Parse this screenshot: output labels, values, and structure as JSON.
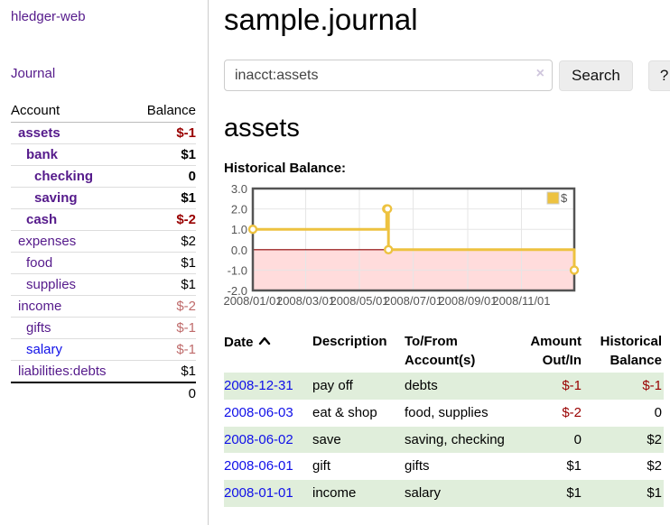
{
  "app_title": "hledger-web",
  "colors": {
    "link_purple": "#551a8b",
    "link_blue": "#0f0fe8",
    "negative_strong": "#990000",
    "negative_weak": "#bf6b6b",
    "row_stripe_green": "#e0eedb"
  },
  "sidebar": {
    "journal_link": "Journal",
    "accounts_table": {
      "account_header": "Account",
      "balance_header": "Balance",
      "rows": [
        {
          "name": "assets",
          "balance": "$-1",
          "depth": 1,
          "bold": true,
          "balance_style": "neg-strong"
        },
        {
          "name": "bank",
          "balance": "$1",
          "depth": 2,
          "bold": true,
          "balance_style": "pos"
        },
        {
          "name": "checking",
          "balance": "0",
          "depth": 3,
          "bold": true,
          "balance_style": "pos"
        },
        {
          "name": "saving",
          "balance": "$1",
          "depth": 3,
          "bold": true,
          "balance_style": "pos"
        },
        {
          "name": "cash",
          "balance": "$-2",
          "depth": 2,
          "bold": true,
          "balance_style": "neg-strong"
        },
        {
          "name": "expenses",
          "balance": "$2",
          "depth": 1,
          "bold": false,
          "balance_style": "pos"
        },
        {
          "name": "food",
          "balance": "$1",
          "depth": 2,
          "bold": false,
          "balance_style": "pos"
        },
        {
          "name": "supplies",
          "balance": "$1",
          "depth": 2,
          "bold": false,
          "balance_style": "pos"
        },
        {
          "name": "income",
          "balance": "$-2",
          "depth": 1,
          "bold": false,
          "balance_style": "neg-weak"
        },
        {
          "name": "gifts",
          "balance": "$-1",
          "depth": 2,
          "bold": false,
          "balance_style": "neg-weak"
        },
        {
          "name": "salary",
          "balance": "$-1",
          "depth": 2,
          "bold": false,
          "balance_style": "neg-weak",
          "link_color": "blue"
        },
        {
          "name": "liabilities:debts",
          "balance": "$1",
          "depth": 1,
          "bold": false,
          "balance_style": "pos"
        }
      ],
      "total": "0"
    }
  },
  "main": {
    "title": "sample.journal",
    "search": {
      "value": "inacct:assets",
      "clear_icon": "×",
      "search_button": "Search",
      "help_button": "?"
    },
    "account_heading": "assets",
    "chart_title": "Historical Balance:"
  },
  "chart_data": {
    "type": "line",
    "subtype": "step",
    "title": "Historical Balance:",
    "legend": [
      {
        "label": "$",
        "color": "#edc240"
      }
    ],
    "legend_position": "top-right",
    "grid": true,
    "xlim": [
      "2008-01-01",
      "2008-12-31"
    ],
    "ylim": [
      -2,
      3
    ],
    "x_ticks": [
      "2008/01/01",
      "2008/03/01",
      "2008/05/01",
      "2008/07/01",
      "2008/09/01",
      "2008/11/01"
    ],
    "y_ticks": [
      "3.0",
      "2.0",
      "1.0",
      "0.0",
      "-1.0",
      "-2.0"
    ],
    "series": [
      {
        "name": "$",
        "color": "#edc240",
        "marker": {
          "fill": "#ffffff",
          "stroke": "#edc240"
        },
        "points": [
          {
            "date": "2008-01-01",
            "value": 1
          },
          {
            "date": "2008-06-01",
            "value": 2
          },
          {
            "date": "2008-06-02",
            "value": 2
          },
          {
            "date": "2008-06-03",
            "value": 0
          },
          {
            "date": "2008-12-31",
            "value": -1
          }
        ]
      }
    ],
    "negative_region_color": "#ffdcdc",
    "zero_line_color": "#8b0000",
    "border_color": "#545454",
    "grid_color": "#e6e6e6",
    "tick_text_color": "#545454"
  },
  "register_table": {
    "headers": [
      {
        "label": "Date",
        "align": "left",
        "sort_icon": "chevron-up"
      },
      {
        "label": "Description",
        "align": "left"
      },
      {
        "label": "To/From Account(s)",
        "align": "left"
      },
      {
        "label": "Amount Out/In",
        "align": "right"
      },
      {
        "label": "Historical Balance",
        "align": "right"
      }
    ],
    "rows": [
      {
        "date": "2008-12-31",
        "description": "pay off",
        "accounts": "debts",
        "amount": "$-1",
        "balance": "$-1",
        "amount_neg": true,
        "balance_neg": true
      },
      {
        "date": "2008-06-03",
        "description": "eat & shop",
        "accounts": "food, supplies",
        "amount": "$-2",
        "balance": "0",
        "amount_neg": true,
        "balance_neg": false
      },
      {
        "date": "2008-06-02",
        "description": "save",
        "accounts": "saving, checking",
        "amount": "0",
        "balance": "$2",
        "amount_neg": false,
        "balance_neg": false
      },
      {
        "date": "2008-06-01",
        "description": "gift",
        "accounts": "gifts",
        "amount": "$1",
        "balance": "$2",
        "amount_neg": false,
        "balance_neg": false
      },
      {
        "date": "2008-01-01",
        "description": "income",
        "accounts": "salary",
        "amount": "$1",
        "balance": "$1",
        "amount_neg": false,
        "balance_neg": false
      }
    ]
  }
}
